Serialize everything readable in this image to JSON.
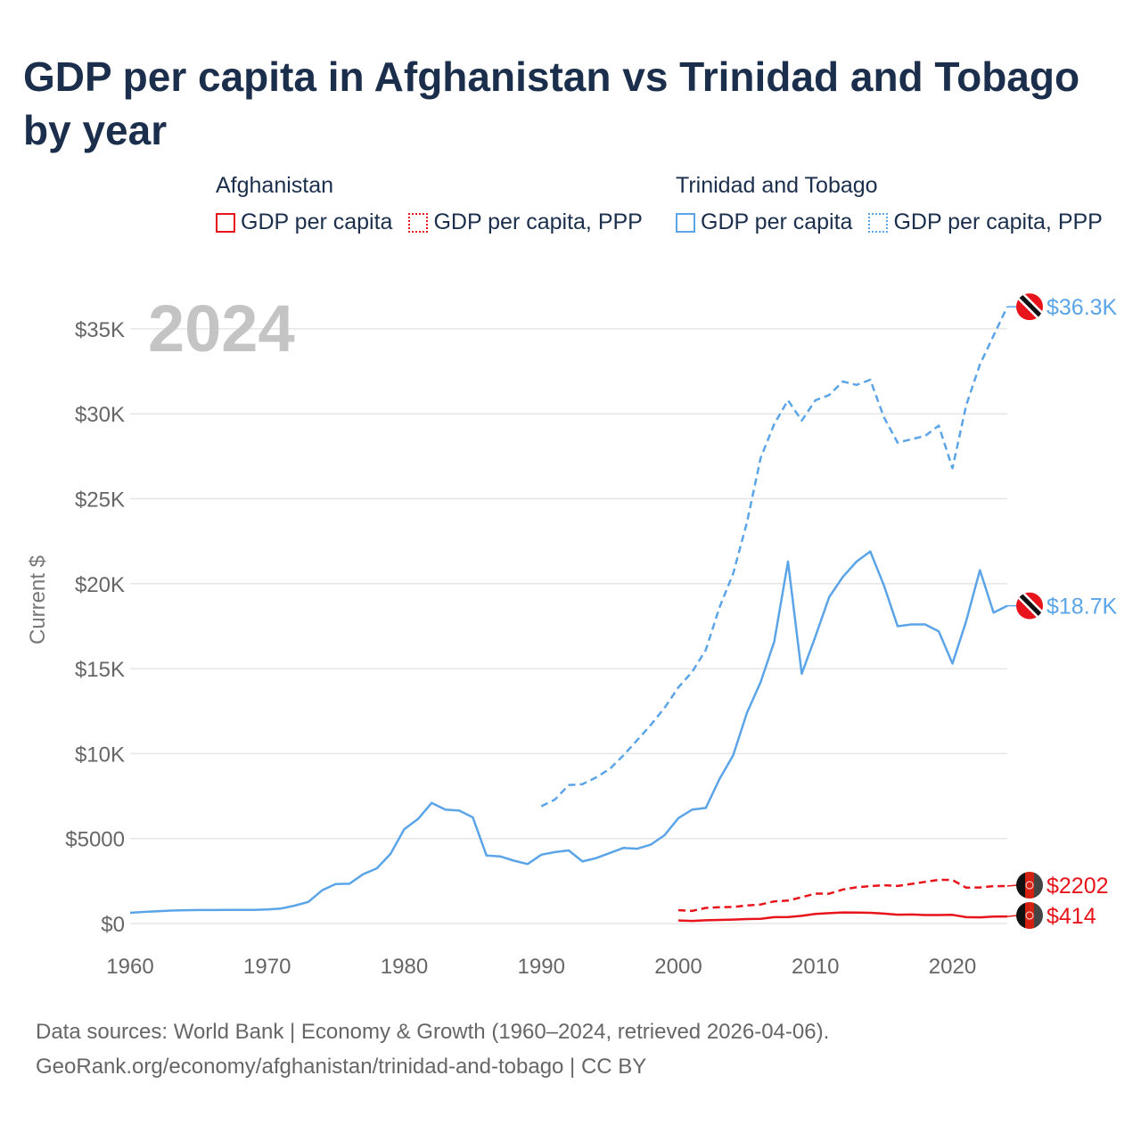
{
  "title": "GDP per capita in Afghanistan vs Trinidad and Tobago by year",
  "legend": {
    "groups": [
      {
        "name": "Afghanistan",
        "items": [
          "GDP per capita",
          "GDP per capita, PPP"
        ],
        "color": "#e8141b"
      },
      {
        "name": "Trinidad and Tobago",
        "items": [
          "GDP per capita",
          "GDP per capita, PPP"
        ],
        "color": "#5ba4e8"
      }
    ]
  },
  "footer": {
    "line1": "Data sources: World Bank | Economy & Growth (1960–2024, retrieved 2026-04-06).",
    "line2": "GeoRank.org/economy/afghanistan/trinidad-and-tobago | CC BY"
  },
  "chart_data": {
    "type": "line",
    "title": "GDP per capita in Afghanistan vs Trinidad and Tobago by year",
    "year_label": "2024",
    "xlabel": "",
    "ylabel": "Current $",
    "xlim": [
      1960,
      2024
    ],
    "ylim": [
      0,
      37000
    ],
    "x_ticks": [
      1960,
      1970,
      1980,
      1990,
      2000,
      2010,
      2020
    ],
    "y_ticks": [
      {
        "v": 0,
        "label": "$0"
      },
      {
        "v": 5000,
        "label": "$5000"
      },
      {
        "v": 10000,
        "label": "$10K"
      },
      {
        "v": 15000,
        "label": "$15K"
      },
      {
        "v": 20000,
        "label": "$20K"
      },
      {
        "v": 25000,
        "label": "$25K"
      },
      {
        "v": 30000,
        "label": "$30K"
      },
      {
        "v": 35000,
        "label": "$35K"
      }
    ],
    "grid": true,
    "series": [
      {
        "name": "Trinidad and Tobago GDP per capita",
        "country": "tt",
        "color": "#5ba4e8",
        "dashed": false,
        "start": 1960,
        "end_label": "$18.7K",
        "values": [
          630,
          680,
          720,
          760,
          780,
          790,
          790,
          800,
          800,
          800,
          830,
          880,
          1050,
          1270,
          1950,
          2320,
          2340,
          2900,
          3250,
          4100,
          5550,
          6150,
          7100,
          6700,
          6650,
          6250,
          4000,
          3950,
          3700,
          3500,
          4050,
          4200,
          4300,
          3650,
          3850,
          4150,
          4450,
          4400,
          4650,
          5200,
          6200,
          6700,
          6800,
          8500,
          9900,
          12400,
          14200,
          16600,
          21300,
          14700,
          16900,
          19200,
          20400,
          21300,
          21900,
          19900,
          17500,
          17600,
          17600,
          17200,
          15300,
          17800,
          20800,
          18300,
          18700
        ]
      },
      {
        "name": "Trinidad and Tobago GDP per capita, PPP",
        "country": "tt",
        "color": "#5ba4e8",
        "dashed": true,
        "start": 1990,
        "end_label": "$36.3K",
        "values": [
          6900,
          7300,
          8150,
          8200,
          8600,
          9100,
          9900,
          10800,
          11700,
          12700,
          13900,
          14800,
          16100,
          18600,
          20600,
          23600,
          27400,
          29400,
          30800,
          29600,
          30800,
          31100,
          31900,
          31700,
          32000,
          29800,
          28300,
          28500,
          28700,
          29300,
          26800,
          30500,
          32900,
          34600,
          36300
        ]
      },
      {
        "name": "Afghanistan GDP per capita",
        "country": "af",
        "color": "#e8141b",
        "dashed": false,
        "start": 2000,
        "end_label": "$414",
        "values": [
          180,
          150,
          190,
          210,
          230,
          260,
          280,
          370,
          380,
          450,
          560,
          610,
          650,
          640,
          630,
          580,
          520,
          530,
          500,
          500,
          510,
          370,
          360,
          410,
          414
        ]
      },
      {
        "name": "Afghanistan GDP per capita, PPP",
        "country": "af",
        "color": "#e8141b",
        "dashed": true,
        "start": 2000,
        "end_label": "$2202",
        "values": [
          780,
          740,
          920,
          960,
          970,
          1060,
          1120,
          1300,
          1350,
          1550,
          1760,
          1750,
          2000,
          2130,
          2200,
          2250,
          2210,
          2330,
          2450,
          2570,
          2560,
          2110,
          2120,
          2200,
          2202
        ]
      }
    ]
  }
}
